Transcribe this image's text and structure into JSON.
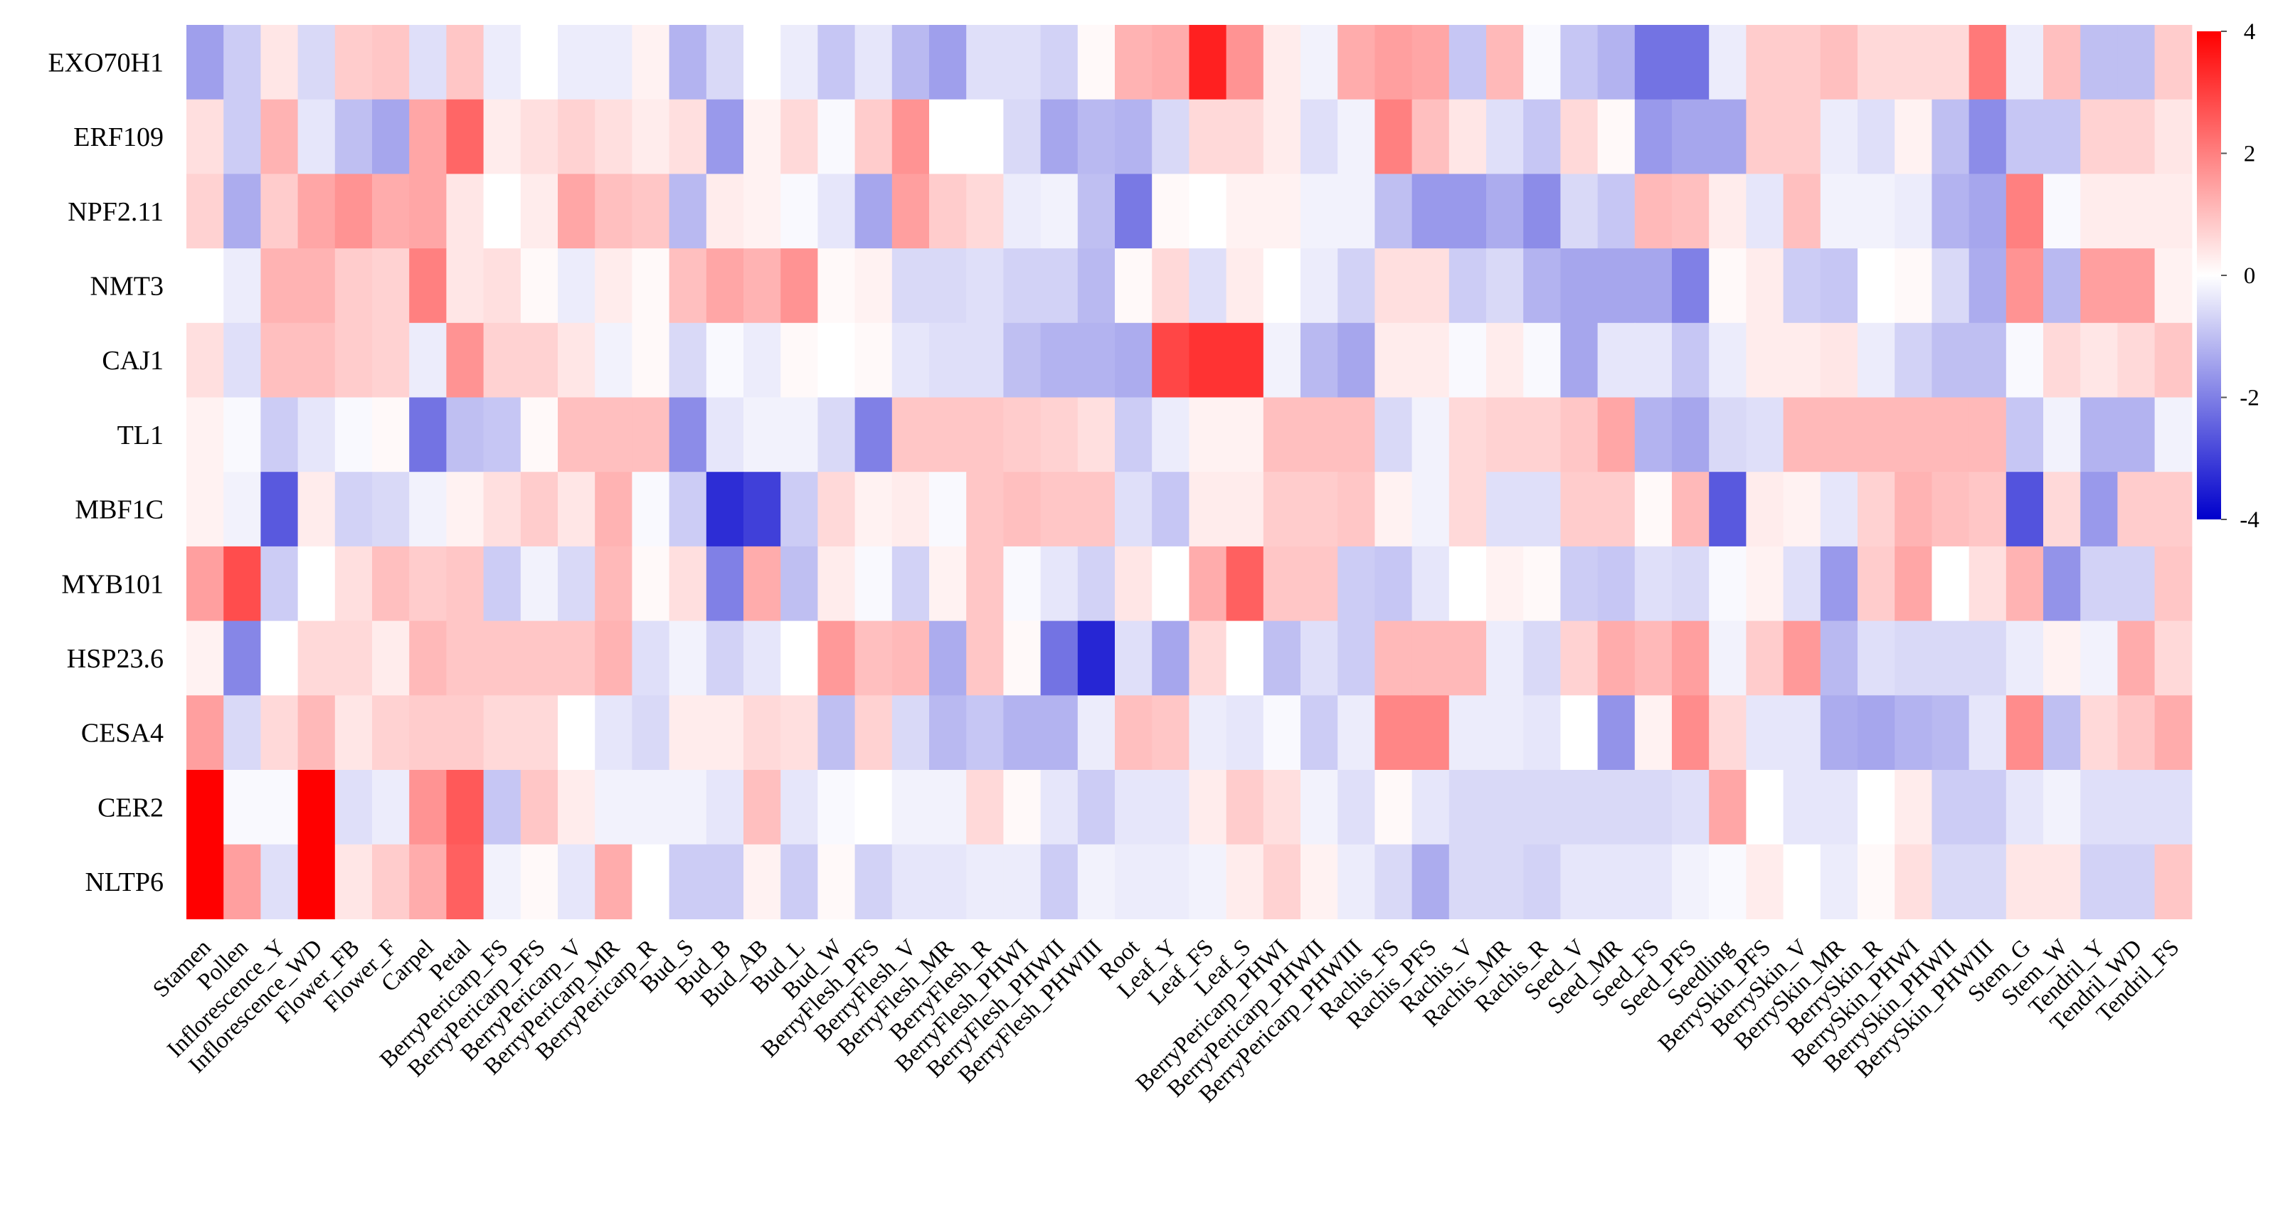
{
  "chart_data": {
    "type": "heatmap",
    "title": "",
    "xlabel": "",
    "ylabel": "",
    "rows": [
      "EXO70H1",
      "ERF109",
      "NPF2.11",
      "NMT3",
      "CAJ1",
      "TL1",
      "MBF1C",
      "MYB101",
      "HSP23.6",
      "CESA4",
      "CER2",
      "NLTP6"
    ],
    "columns": [
      "Stamen",
      "Pollen",
      "Inflorescence_Y",
      "Inflorescence_WD",
      "Flower_FB",
      "Flower_F",
      "Carpel",
      "Petal",
      "BerryPericarp_FS",
      "BerryPericarp_PFS",
      "BerryPericarp_V",
      "BerryPericarp_MR",
      "BerryPericarp_R",
      "Bud_S",
      "Bud_B",
      "Bud_AB",
      "Bud_L",
      "Bud_W",
      "BerryFlesh_PFS",
      "BerryFlesh_V",
      "BerryFlesh_MR",
      "BerryFlesh_R",
      "BerryFlesh_PHWI",
      "BerryFlesh_PHWII",
      "BerryFlesh_PHWIII",
      "Root",
      "Leaf_Y",
      "Leaf_FS",
      "Leaf_S",
      "BerryPericarp_PHWI",
      "BerryPericarp_PHWII",
      "BerryPericarp_PHWIII",
      "Rachis_FS",
      "Rachis_PFS",
      "Rachis_V",
      "Rachis_MR",
      "Rachis_R",
      "Seed_V",
      "Seed_MR",
      "Seed_FS",
      "Seed_PFS",
      "Seedling",
      "BerrySkin_PFS",
      "BerrySkin_V",
      "BerrySkin_MR",
      "BerrySkin_R",
      "BerrySkin_PHWI",
      "BerrySkin_PHWII",
      "BerrySkin_PHWIII",
      "Stem_G",
      "Stem_W",
      "Tendril_Y",
      "Tendril_WD",
      "Tendril_FS"
    ],
    "values": [
      [
        -1.5,
        -0.8,
        0.4,
        -0.6,
        0.8,
        0.9,
        -0.5,
        0.9,
        -0.3,
        0,
        -0.3,
        -0.3,
        0.2,
        -1.2,
        -0.6,
        0,
        -0.3,
        -0.9,
        -0.4,
        -1.1,
        -1.5,
        -0.5,
        -0.5,
        -0.7,
        0.1,
        1.2,
        1.3,
        3.5,
        1.7,
        0.3,
        -0.2,
        1.3,
        1.5,
        1.4,
        -0.9,
        1.1,
        -0.1,
        -0.9,
        -1.2,
        -2.2,
        -2.2,
        -0.3,
        0.8,
        0.8,
        1.0,
        0.6,
        0.6,
        0.6,
        2.1,
        -0.3,
        1.0,
        -1.0,
        -1.0,
        0.8
      ],
      [
        0.5,
        -0.8,
        1.2,
        -0.4,
        -1.0,
        -1.4,
        1.4,
        2.4,
        0.3,
        0.5,
        0.7,
        0.5,
        0.3,
        0.5,
        -1.6,
        0.2,
        0.6,
        -0.1,
        0.8,
        1.7,
        0,
        0,
        -0.6,
        -1.4,
        -1.1,
        -1.2,
        -0.6,
        0.6,
        0.6,
        0.3,
        -0.5,
        -0.2,
        2.0,
        1.0,
        0.4,
        -0.5,
        -0.9,
        0.6,
        0.1,
        -1.6,
        -1.4,
        -1.4,
        0.8,
        0.8,
        -0.3,
        -0.5,
        0.2,
        -1.0,
        -1.8,
        -0.9,
        -0.9,
        0.7,
        0.7,
        0.4
      ],
      [
        0.7,
        -1.3,
        0.8,
        1.4,
        1.7,
        1.3,
        1.4,
        0.4,
        0,
        0.3,
        1.4,
        1.0,
        0.9,
        -1.1,
        0.3,
        0.2,
        -0.1,
        -0.4,
        -1.4,
        1.5,
        0.8,
        0.6,
        -0.3,
        -0.2,
        -1.0,
        -2.1,
        0.1,
        0,
        0.2,
        0.2,
        -0.2,
        -0.2,
        -1.0,
        -1.6,
        -1.6,
        -1.3,
        -1.8,
        -0.6,
        -0.9,
        1.1,
        1.0,
        0.3,
        -0.4,
        1.0,
        -0.2,
        -0.2,
        -0.3,
        -1.2,
        -1.4,
        2.0,
        -0.1,
        0.3,
        0.3,
        0.3
      ],
      [
        0,
        -0.3,
        1.2,
        1.2,
        0.8,
        0.7,
        2.0,
        0.4,
        0.5,
        0.1,
        -0.3,
        0.3,
        0.1,
        1.0,
        1.4,
        1.2,
        1.7,
        0.1,
        0.2,
        -0.6,
        -0.6,
        -0.5,
        -0.7,
        -0.7,
        -1.1,
        0.1,
        0.6,
        -0.5,
        0.3,
        0,
        -0.3,
        -0.7,
        0.5,
        0.5,
        -0.8,
        -0.6,
        -1.2,
        -1.4,
        -1.4,
        -1.4,
        -2.0,
        0.1,
        0.3,
        -0.8,
        -0.9,
        0,
        0.1,
        -0.6,
        -1.3,
        1.7,
        -1.1,
        1.5,
        1.5,
        0.2
      ],
      [
        0.5,
        -0.5,
        1.0,
        1.0,
        0.8,
        0.7,
        -0.3,
        1.7,
        0.7,
        0.7,
        0.4,
        -0.2,
        0.1,
        -0.6,
        -0.1,
        -0.3,
        0.1,
        0,
        0.1,
        -0.4,
        -0.5,
        -0.5,
        -1.0,
        -1.2,
        -1.2,
        -1.3,
        2.9,
        3.2,
        3.2,
        -0.2,
        -1.1,
        -1.4,
        0.3,
        0.3,
        -0.1,
        0.3,
        -0.1,
        -1.4,
        -0.4,
        -0.4,
        -0.9,
        -0.3,
        0.3,
        0.3,
        0.4,
        -0.3,
        -0.7,
        -1.0,
        -1.0,
        -0.1,
        0.6,
        0.4,
        0.6,
        0.9
      ],
      [
        0.2,
        -0.1,
        -0.8,
        -0.4,
        -0.1,
        0.1,
        -2.2,
        -1.0,
        -0.9,
        0.1,
        1.0,
        1.0,
        1.0,
        -1.8,
        -0.4,
        -0.2,
        -0.2,
        -0.6,
        -2.0,
        0.9,
        0.9,
        0.9,
        0.8,
        0.7,
        0.5,
        -0.8,
        -0.3,
        0.2,
        0.2,
        1.0,
        1.0,
        1.0,
        -0.6,
        -0.2,
        0.6,
        0.7,
        0.7,
        0.9,
        1.4,
        -1.2,
        -1.4,
        -0.6,
        -0.5,
        1.1,
        1.1,
        1.1,
        1.1,
        1.1,
        1.1,
        -0.9,
        -0.2,
        -1.2,
        -1.2,
        -0.2
      ],
      [
        0.2,
        -0.2,
        -2.6,
        0.3,
        -0.7,
        -0.6,
        -0.2,
        0.2,
        0.5,
        0.8,
        0.4,
        1.2,
        -0.1,
        -0.8,
        -3.3,
        -3.0,
        -0.8,
        0.6,
        0.2,
        0.3,
        -0.1,
        0.9,
        1.0,
        0.9,
        0.9,
        -0.5,
        -0.9,
        0.3,
        0.3,
        0.8,
        0.8,
        0.9,
        0.2,
        -0.2,
        0.6,
        -0.5,
        -0.5,
        0.8,
        0.8,
        0.1,
        1.1,
        -2.6,
        0.3,
        0.2,
        -0.4,
        0.7,
        1.2,
        1.0,
        0.9,
        -2.7,
        0.6,
        -1.6,
        0.8,
        0.8
      ],
      [
        1.5,
        2.8,
        -0.8,
        0,
        0.5,
        1.0,
        0.8,
        0.9,
        -0.8,
        -0.2,
        -0.6,
        1.1,
        0.1,
        0.5,
        -2.0,
        1.3,
        -1.0,
        0.3,
        -0.1,
        -0.7,
        0.2,
        0.9,
        -0.1,
        -0.4,
        -0.7,
        0.4,
        0,
        1.3,
        2.5,
        0.9,
        0.9,
        -0.8,
        -0.9,
        -0.4,
        0,
        0.2,
        0.1,
        -0.8,
        -0.9,
        -0.5,
        -0.6,
        -0.1,
        0.2,
        -0.5,
        -1.6,
        0.8,
        1.4,
        0,
        0.5,
        1.2,
        -1.7,
        -0.7,
        -0.7,
        0.9
      ],
      [
        0.2,
        -1.9,
        0,
        0.6,
        0.6,
        0.3,
        1.1,
        0.9,
        0.9,
        0.9,
        0.9,
        1.2,
        -0.5,
        -0.2,
        -0.7,
        -0.4,
        0,
        1.6,
        1.0,
        1.1,
        -1.3,
        0.9,
        0.1,
        -2.2,
        -3.4,
        -0.5,
        -1.4,
        0.6,
        0,
        -1.0,
        -0.5,
        -0.8,
        1.1,
        1.1,
        1.1,
        -0.3,
        -0.6,
        0.7,
        1.3,
        1.1,
        1.5,
        -0.2,
        0.8,
        1.6,
        -1.1,
        -0.5,
        -0.6,
        -0.6,
        -0.6,
        -0.3,
        0.2,
        -0.2,
        1.3,
        0.6
      ],
      [
        1.5,
        -0.6,
        0.6,
        1.1,
        0.4,
        0.7,
        0.8,
        0.8,
        0.6,
        0.6,
        0,
        -0.4,
        -0.6,
        0.3,
        0.3,
        0.6,
        0.5,
        -1.0,
        0.7,
        -0.6,
        -1.1,
        -0.9,
        -1.2,
        -1.2,
        -0.3,
        1.0,
        0.9,
        -0.3,
        -0.4,
        -0.1,
        -0.8,
        -0.3,
        1.9,
        1.9,
        -0.3,
        -0.3,
        -0.4,
        0,
        -1.7,
        0.2,
        1.8,
        0.6,
        -0.4,
        -0.4,
        -1.3,
        -1.4,
        -1.2,
        -1.1,
        -0.4,
        1.8,
        -1.0,
        0.6,
        0.9,
        1.3
      ],
      [
        4.0,
        -0.1,
        -0.1,
        4.0,
        -0.5,
        -0.3,
        1.7,
        2.6,
        -0.9,
        0.9,
        0.3,
        -0.2,
        -0.2,
        -0.2,
        -0.4,
        1.0,
        -0.4,
        -0.1,
        0,
        -0.2,
        -0.2,
        0.6,
        0.1,
        -0.4,
        -0.8,
        -0.4,
        -0.4,
        0.3,
        0.8,
        0.5,
        -0.2,
        -0.5,
        0.1,
        -0.4,
        -0.6,
        -0.6,
        -0.6,
        -0.6,
        -0.6,
        -0.6,
        -0.5,
        1.4,
        0,
        -0.4,
        -0.4,
        0,
        0.3,
        -0.8,
        -0.8,
        -0.4,
        -0.2,
        -0.5,
        -0.5,
        -0.5
      ],
      [
        4.0,
        1.5,
        -0.5,
        4.0,
        0.4,
        0.8,
        1.3,
        2.5,
        -0.2,
        0.1,
        -0.4,
        1.3,
        0,
        -0.8,
        -0.8,
        0.2,
        -0.8,
        0.1,
        -0.7,
        -0.4,
        -0.4,
        -0.3,
        -0.3,
        -0.8,
        -0.2,
        -0.3,
        -0.3,
        -0.2,
        0.3,
        0.7,
        0.2,
        -0.3,
        -0.6,
        -1.3,
        -0.6,
        -0.6,
        -0.7,
        -0.4,
        -0.4,
        -0.4,
        -0.2,
        -0.1,
        0.3,
        0,
        -0.3,
        0.1,
        0.5,
        -0.6,
        -0.6,
        0.4,
        0.4,
        -0.7,
        -0.7,
        0.9
      ]
    ],
    "color_scale": {
      "min": -4,
      "max": 4,
      "low_color": "#0000cc",
      "mid_color": "#ffffff",
      "high_color": "#ff0000",
      "ticks": [
        4,
        2,
        0,
        -2,
        -4
      ]
    },
    "legend_placement": "right"
  }
}
